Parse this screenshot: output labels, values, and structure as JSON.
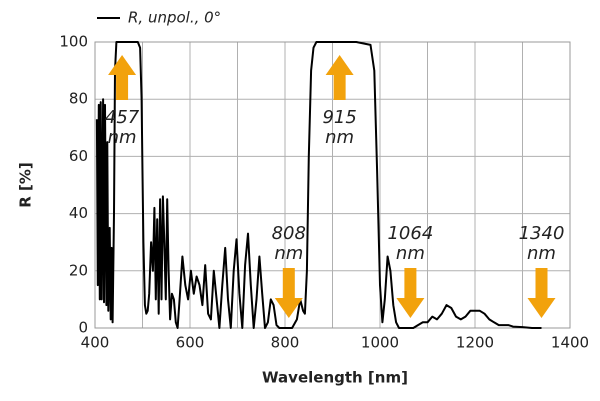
{
  "chart_data": {
    "type": "line",
    "xlabel": "Wavelength [nm]",
    "ylabel": "R [%]",
    "series": [
      {
        "name": "R, unpol., 0°",
        "color": "#000000",
        "x": [
          404,
          406,
          408,
          410,
          412,
          414,
          417,
          419,
          421,
          424,
          426,
          428,
          431,
          433,
          435,
          437,
          440,
          442,
          445,
          450,
          470,
          490,
          495,
          498,
          500,
          502,
          505,
          508,
          511,
          514,
          518,
          522,
          525,
          528,
          531,
          534,
          537,
          540,
          543,
          546,
          549,
          552,
          555,
          558,
          562,
          566,
          570,
          574,
          578,
          584,
          590,
          596,
          602,
          608,
          614,
          620,
          626,
          632,
          638,
          644,
          650,
          656,
          662,
          668,
          674,
          680,
          686,
          692,
          698,
          704,
          710,
          716,
          722,
          728,
          734,
          740,
          746,
          752,
          758,
          764,
          770,
          776,
          782,
          788,
          795,
          805,
          815,
          825,
          832,
          838,
          842,
          846,
          850,
          855,
          860,
          866,
          875,
          900,
          950,
          980,
          988,
          994,
          1000,
          1005,
          1010,
          1016,
          1022,
          1028,
          1034,
          1040,
          1050,
          1060,
          1070,
          1080,
          1090,
          1100,
          1110,
          1120,
          1130,
          1140,
          1150,
          1160,
          1170,
          1180,
          1190,
          1200,
          1210,
          1220,
          1230,
          1240,
          1250,
          1260,
          1270,
          1280,
          1300,
          1320,
          1340
        ],
        "values": [
          73,
          15,
          78,
          10,
          79,
          10,
          80,
          9,
          78,
          8,
          65,
          6,
          35,
          3,
          28,
          2,
          40,
          90,
          100,
          100,
          100,
          100,
          98,
          80,
          54,
          30,
          8,
          5,
          6,
          12,
          30,
          20,
          42,
          10,
          38,
          5,
          45,
          10,
          46,
          30,
          10,
          45,
          20,
          3,
          12,
          10,
          2,
          0,
          10,
          25,
          15,
          10,
          20,
          12,
          18,
          15,
          8,
          22,
          5,
          3,
          20,
          10,
          0,
          15,
          28,
          10,
          0,
          20,
          31,
          12,
          0,
          22,
          33,
          15,
          0,
          10,
          25,
          12,
          0,
          2,
          10,
          8,
          1,
          0,
          0,
          0,
          0,
          3,
          10,
          6,
          5,
          20,
          60,
          90,
          98,
          100,
          100,
          100,
          100,
          99,
          90,
          55,
          15,
          2,
          10,
          25,
          20,
          8,
          2,
          0,
          0,
          0,
          0,
          1,
          2,
          2,
          4,
          3,
          5,
          8,
          7,
          4,
          3,
          4,
          6,
          6,
          6,
          5,
          3,
          2,
          1,
          1,
          1,
          0.5,
          0.3,
          0,
          0
        ]
      }
    ],
    "xlim": [
      400,
      1400
    ],
    "xticks": [
      400,
      600,
      800,
      1000,
      1200,
      1400
    ],
    "xminorticks": [
      500,
      700,
      900,
      1100,
      1300
    ],
    "ylim": [
      0,
      100
    ],
    "yticks": [
      0,
      20,
      40,
      60,
      80,
      100
    ],
    "grid": true,
    "legend": "top-left",
    "annotations": [
      {
        "x": 457,
        "label": "457",
        "unit": "nm",
        "direction": "up"
      },
      {
        "x": 915,
        "label": "915",
        "unit": "nm",
        "direction": "up"
      },
      {
        "x": 808,
        "label": "808",
        "unit": "nm",
        "direction": "down"
      },
      {
        "x": 1064,
        "label": "1064",
        "unit": "nm",
        "direction": "down"
      },
      {
        "x": 1340,
        "label": "1340",
        "unit": "nm",
        "direction": "down"
      }
    ],
    "annotation_color": "#f2a20c"
  }
}
